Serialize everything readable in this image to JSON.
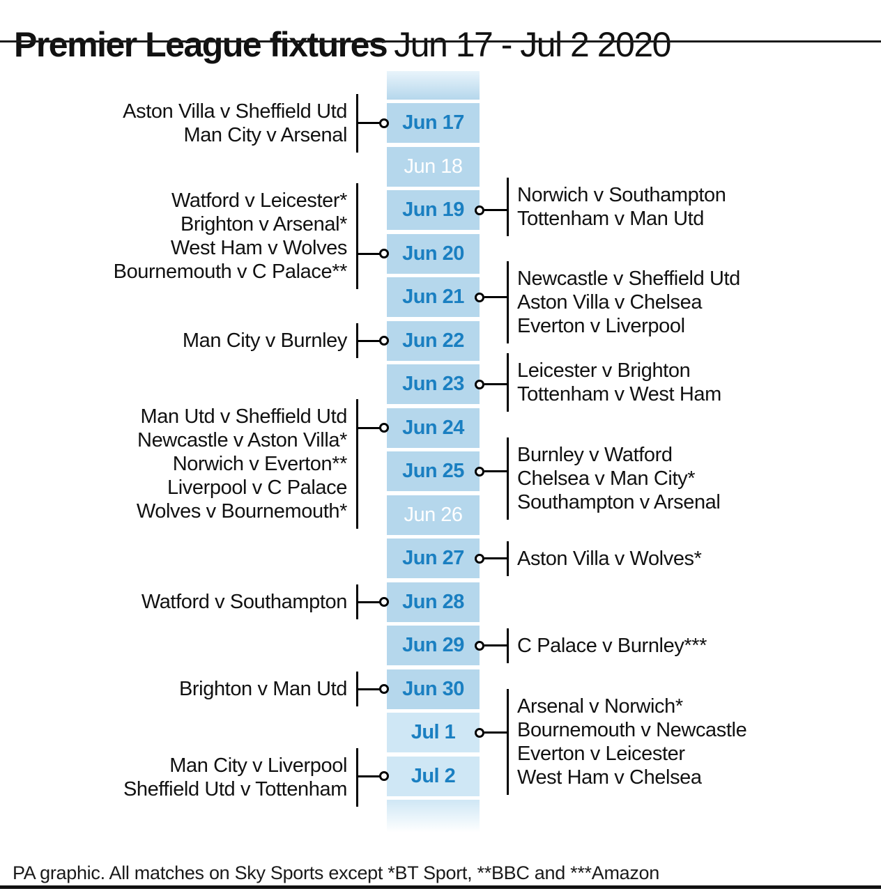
{
  "title": {
    "bold": "Premier League fixtures",
    "range": "Jun 17 - Jul 2 2020"
  },
  "footer": {
    "credit": "PA graphic. All matches on Sky Sports except *BT Sport, **BBC and ***Amazon"
  },
  "colors": {
    "june_cell": "#b5d7ec",
    "july_cell": "#cfe7f5",
    "date_text": "#1a7fc1",
    "no_fixture_text": "#ffffff",
    "line": "#000000"
  },
  "days": [
    {
      "label": "Jun 17",
      "month": "jun",
      "side": "left",
      "fixtures": [
        "Aston Villa v Sheffield Utd",
        "Man City v Arsenal"
      ]
    },
    {
      "label": "Jun 18",
      "month": "jun",
      "side": "none",
      "fixtures": []
    },
    {
      "label": "Jun 19",
      "month": "jun",
      "side": "right",
      "fixtures": [
        "Norwich v Southampton",
        "Tottenham v Man Utd"
      ]
    },
    {
      "label": "Jun 20",
      "month": "jun",
      "side": "left",
      "fixtures": [
        "Watford v Leicester*",
        "Brighton v Arsenal*",
        "West Ham v Wolves",
        "Bournemouth v C Palace**"
      ]
    },
    {
      "label": "Jun 21",
      "month": "jun",
      "side": "right",
      "fixtures": [
        "Newcastle v Sheffield Utd",
        "Aston Villa v Chelsea",
        "Everton v Liverpool"
      ]
    },
    {
      "label": "Jun 22",
      "month": "jun",
      "side": "left",
      "fixtures": [
        "Man City v Burnley"
      ]
    },
    {
      "label": "Jun 23",
      "month": "jun",
      "side": "right",
      "fixtures": [
        "Leicester v Brighton",
        "Tottenham v West Ham"
      ]
    },
    {
      "label": "Jun 24",
      "month": "jun",
      "side": "left",
      "fixtures": [
        "Man Utd v Sheffield Utd",
        "Newcastle v Aston Villa*",
        "Norwich v Everton**",
        "Liverpool v C Palace",
        "Wolves v Bournemouth*"
      ]
    },
    {
      "label": "Jun 25",
      "month": "jun",
      "side": "right",
      "fixtures": [
        "Burnley v Watford",
        "Chelsea v Man City*",
        "Southampton v Arsenal"
      ]
    },
    {
      "label": "Jun 26",
      "month": "jun",
      "side": "none",
      "fixtures": []
    },
    {
      "label": "Jun 27",
      "month": "jun",
      "side": "right",
      "fixtures": [
        "Aston Villa v Wolves*"
      ]
    },
    {
      "label": "Jun 28",
      "month": "jun",
      "side": "left",
      "fixtures": [
        "Watford v Southampton"
      ]
    },
    {
      "label": "Jun 29",
      "month": "jun",
      "side": "right",
      "fixtures": [
        "C Palace v Burnley***"
      ]
    },
    {
      "label": "Jun 30",
      "month": "jun",
      "side": "left",
      "fixtures": [
        "Brighton v Man Utd"
      ]
    },
    {
      "label": "Jul 1",
      "month": "jul",
      "side": "right",
      "fixtures": [
        "Arsenal v Norwich*",
        "Bournemouth v Newcastle",
        "Everton v Leicester",
        "West Ham v Chelsea"
      ]
    },
    {
      "label": "Jul 2",
      "month": "jul",
      "side": "left",
      "fixtures": [
        "Man City v Liverpool",
        "Sheffield Utd v Tottenham"
      ]
    }
  ]
}
